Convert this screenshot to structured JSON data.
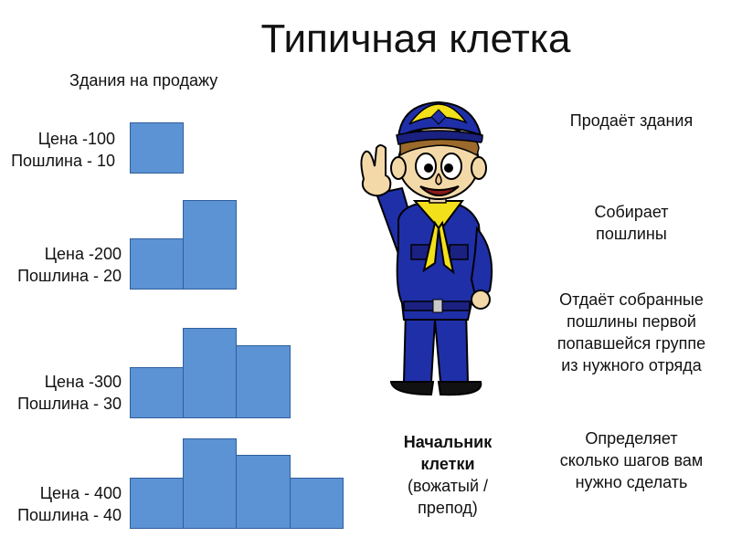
{
  "title": "Типичная клетка",
  "subtitle": "Здания на продажу",
  "buildings": [
    {
      "price": "Цена -100",
      "toll": "Пошлина - 10"
    },
    {
      "price": "Цена -200",
      "toll": "Пошлина - 20"
    },
    {
      "price": "Цена -300",
      "toll": "Пошлина - 30"
    },
    {
      "price": "Цена - 400",
      "toll": "Пошлина - 40"
    }
  ],
  "duties": [
    "Продаёт здания",
    "Собирает пошлины",
    "Отдаёт собранные пошлины первой попавшейся группе из нужного отряда",
    "Определяет сколько шагов вам нужно сделать"
  ],
  "boss": {
    "name_line1": "Начальник",
    "name_line2": "клетки",
    "role_line1": "(вожатый /",
    "role_line2": "препод)"
  },
  "colors": {
    "block_fill": "#5b93d4",
    "block_border": "#2f5f9c",
    "uniform": "#1f2fa8",
    "scarf": "#f2e01a"
  },
  "illustration": "scout-leader-waving-icon"
}
